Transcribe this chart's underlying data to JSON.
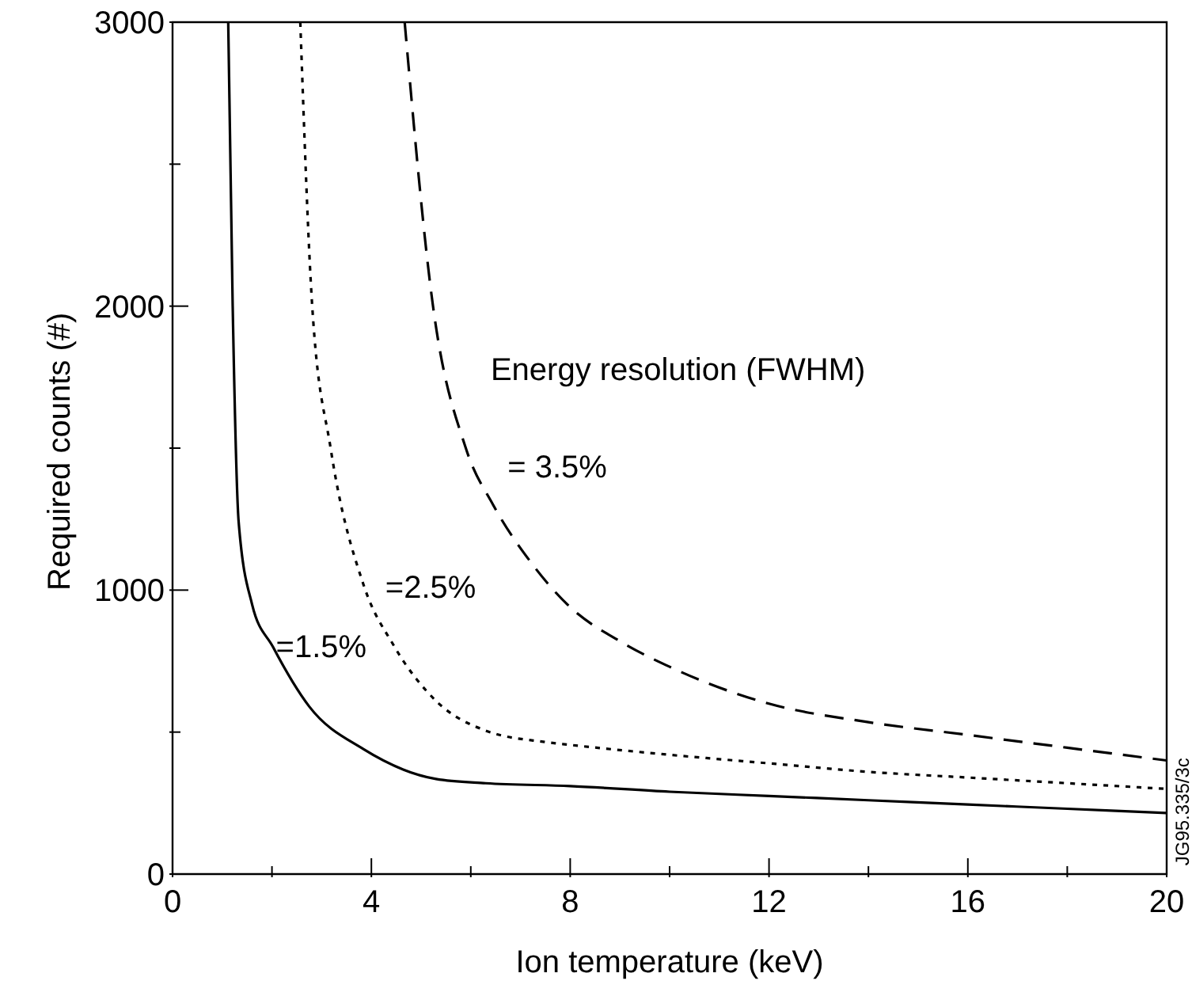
{
  "chart_data": {
    "type": "line",
    "xlabel": "Ion temperature (keV)",
    "ylabel": "Required counts (#)",
    "xlim": [
      0,
      20
    ],
    "ylim": [
      0,
      3000
    ],
    "xticks": [
      0,
      {
        "value": 2,
        "label": null
      },
      4,
      {
        "value": 6,
        "label": null
      },
      8,
      {
        "value": 10,
        "label": null
      },
      12,
      {
        "value": 14,
        "label": null
      },
      16,
      {
        "value": 18,
        "label": null
      },
      20
    ],
    "yticks": [
      0,
      {
        "value": 500,
        "label": null
      },
      1000,
      {
        "value": 1500,
        "label": null
      },
      2000,
      {
        "value": 2500,
        "label": null
      },
      3000
    ],
    "marker": "none",
    "series": [
      {
        "name": "=1.5%",
        "color": "#000000",
        "line_style": "solid",
        "x": [
          1.12,
          1.21,
          1.33,
          1.6,
          2.02,
          2.75,
          3.84,
          5.3,
          6.3,
          8,
          10,
          12,
          14,
          16,
          18,
          20
        ],
        "values": [
          3000,
          2000,
          1240,
          950,
          800,
          590,
          440,
          335,
          320,
          310,
          290,
          275,
          260,
          245,
          230,
          215
        ]
      },
      {
        "name": "=2.5%",
        "color": "#000000",
        "line_style": "dotted",
        "x": [
          2.57,
          2.81,
          3.18,
          3.84,
          4.45,
          5.3,
          6.3,
          7.5,
          8,
          10,
          12,
          14,
          16,
          18,
          20
        ],
        "values": [
          3000,
          2000,
          1500,
          1020,
          805,
          610,
          505,
          465,
          455,
          420,
          390,
          360,
          340,
          320,
          300
        ]
      },
      {
        "name": "= 3.5%",
        "color": "#000000",
        "line_style": "dashed",
        "x": [
          4.67,
          5.24,
          5.9,
          6.45,
          7.2,
          8,
          9,
          10,
          12,
          14,
          16,
          18,
          20
        ],
        "values": [
          3000,
          2000,
          1500,
          1300,
          1100,
          940,
          820,
          730,
          600,
          535,
          490,
          445,
          400
        ]
      }
    ],
    "annotations": [
      "Energy resolution (FWHM)",
      "JG95.335/3c"
    ]
  }
}
